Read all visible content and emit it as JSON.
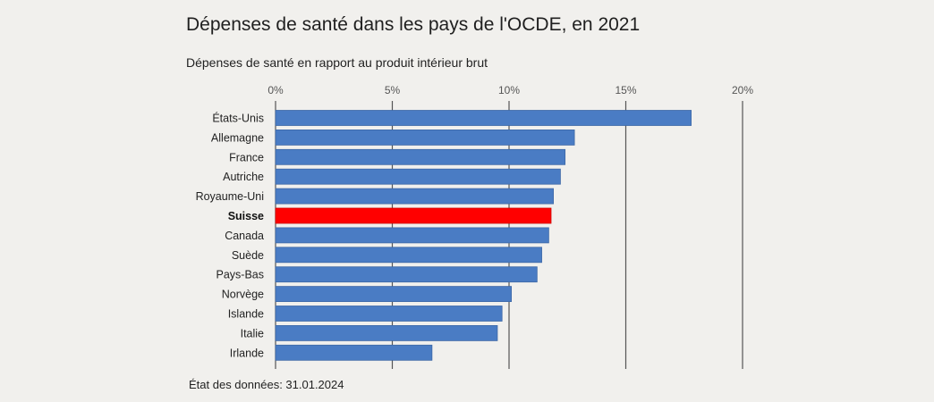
{
  "title": "Dépenses de santé dans les pays de l'OCDE, en 2021",
  "subtitle": "Dépenses de santé en rapport au produit intérieur brut",
  "footnote": "État des données: 31.01.2024",
  "colors": {
    "bar": "#4a7cc4",
    "bar_stroke": "#3e68a6",
    "highlight": "#ff0000",
    "highlight_stroke": "#cc0000",
    "gridline": "#555555",
    "background": "#f1f0ed"
  },
  "chart_data": {
    "type": "bar",
    "orientation": "horizontal",
    "title": "Dépenses de santé dans les pays de l'OCDE, en 2021",
    "subtitle": "Dépenses de santé en rapport au produit intérieur brut",
    "categories": [
      "États-Unis",
      "Allemagne",
      "France",
      "Autriche",
      "Royaume-Uni",
      "Suisse",
      "Canada",
      "Suède",
      "Pays-Bas",
      "Norvège",
      "Islande",
      "Italie",
      "Irlande"
    ],
    "values": [
      17.8,
      12.8,
      12.4,
      12.2,
      11.9,
      11.8,
      11.7,
      11.4,
      11.2,
      10.1,
      9.7,
      9.5,
      6.7
    ],
    "highlight": "Suisse",
    "xlim": [
      0,
      20
    ],
    "xticks": [
      0,
      5,
      10,
      15,
      20
    ],
    "xtick_labels": [
      "0%",
      "5%",
      "10%",
      "15%",
      "20%"
    ],
    "xaxis_position": "top",
    "grid": true,
    "legend": "none"
  }
}
